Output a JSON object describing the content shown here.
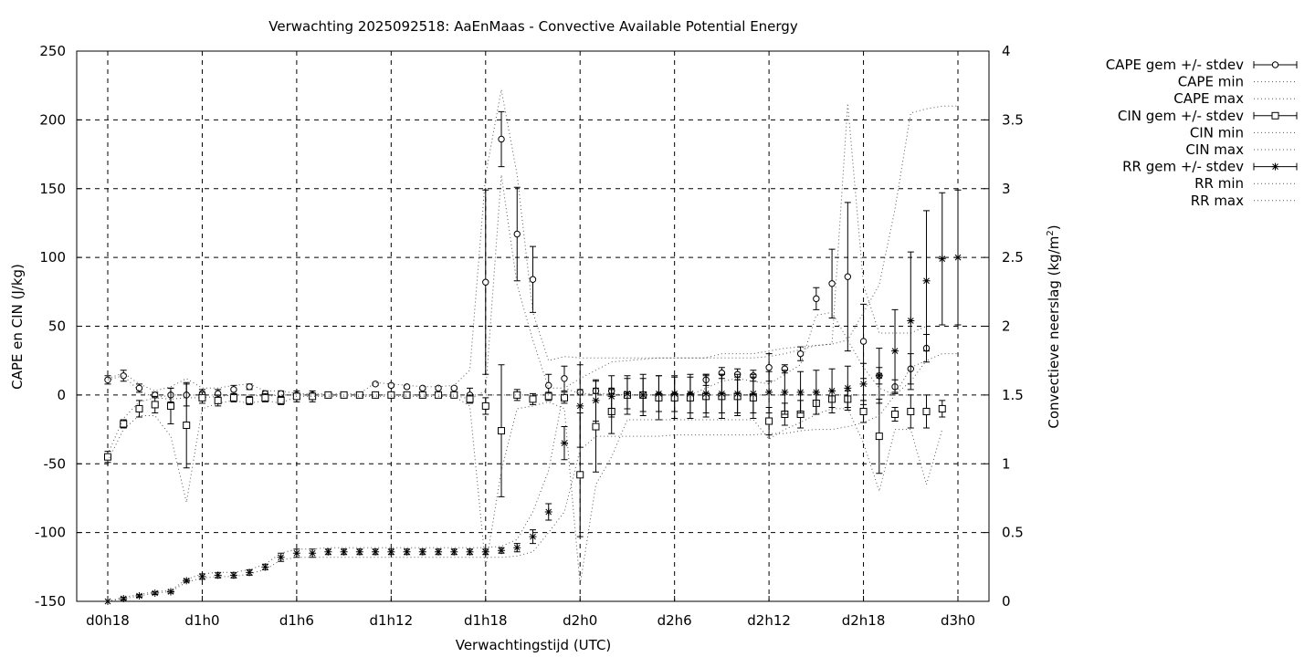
{
  "chart_data": {
    "type": "line",
    "title": "Verwachting 2025092518: AaEnMaas - Convective Available Potential Energy",
    "xlabel": "Verwachtingstijd (UTC)",
    "ylabel": "CAPE en CIN (J/kg)",
    "y2label_main": "Convectieve neerslag (kg/m",
    "y2label_sup": "2",
    "y2label_end": ")",
    "xlim": [
      0,
      57
    ],
    "ylim": [
      -150,
      250
    ],
    "y2lim": [
      0,
      4
    ],
    "grid": true,
    "legend_position": "outside-top-right",
    "xticks": [
      {
        "x": 0,
        "label": "d0h18"
      },
      {
        "x": 6,
        "label": "d1h0"
      },
      {
        "x": 12,
        "label": "d1h6"
      },
      {
        "x": 18,
        "label": "d1h12"
      },
      {
        "x": 24,
        "label": "d1h18"
      },
      {
        "x": 30,
        "label": "d2h0"
      },
      {
        "x": 36,
        "label": "d2h6"
      },
      {
        "x": 42,
        "label": "d2h12"
      },
      {
        "x": 48,
        "label": "d2h18"
      },
      {
        "x": 54,
        "label": "d3h0"
      }
    ],
    "yticks": [
      "250",
      "200",
      "150",
      "100",
      "50",
      "0",
      "-50",
      "-100",
      "-150"
    ],
    "y2ticks": [
      "4",
      "3.5",
      "3",
      "2.5",
      "2",
      "1.5",
      "1",
      "0.5",
      "0"
    ],
    "x": [
      0,
      1,
      2,
      3,
      4,
      5,
      6,
      7,
      8,
      9,
      10,
      11,
      12,
      13,
      14,
      15,
      16,
      17,
      18,
      19,
      20,
      21,
      22,
      23,
      24,
      25,
      26,
      27,
      28,
      29,
      30,
      31,
      32,
      33,
      34,
      35,
      36,
      37,
      38,
      39,
      40,
      41,
      42,
      43,
      44,
      45,
      46,
      47,
      48,
      49,
      50,
      51,
      52,
      53,
      54
    ],
    "series": [
      {
        "name": "CAPE gem +/- stdev",
        "axis": "y",
        "marker": "circle",
        "mean": [
          11,
          14,
          5,
          0,
          0,
          0,
          1,
          1,
          4,
          6,
          1,
          1,
          0,
          0,
          0,
          0,
          0,
          8,
          7,
          6,
          5,
          5,
          5,
          0,
          82,
          186,
          117,
          84,
          7,
          12,
          2,
          3,
          3,
          0,
          0,
          0,
          0,
          0,
          11,
          16,
          15,
          14,
          20,
          19,
          30,
          70,
          81,
          86,
          39,
          14,
          6,
          19,
          34,
          null,
          null
        ],
        "stdev": [
          3,
          4,
          3,
          2,
          5,
          8,
          3,
          3,
          3,
          2,
          2,
          2,
          1,
          1,
          1,
          1,
          1,
          1,
          1,
          1,
          1,
          1,
          1,
          5,
          67,
          20,
          34,
          24,
          8,
          9,
          2,
          2,
          2,
          1,
          1,
          1,
          1,
          1,
          4,
          4,
          4,
          4,
          10,
          3,
          5,
          8,
          25,
          54,
          27,
          6,
          5,
          11,
          10,
          null,
          null
        ]
      },
      {
        "name": "CAPE min",
        "axis": "y",
        "style": "dotted",
        "values": [
          11,
          14,
          3,
          -2,
          -3,
          -2,
          -2,
          -1,
          0,
          0,
          -1,
          0,
          0,
          0,
          0,
          0,
          0,
          0,
          0,
          0,
          0,
          0,
          0,
          -3,
          3,
          160,
          80,
          40,
          5,
          5,
          1,
          1,
          1,
          0,
          0,
          0,
          0,
          0,
          5,
          10,
          12,
          10,
          8,
          15,
          22,
          58,
          60,
          40,
          20,
          5,
          0,
          10,
          25,
          null,
          null
        ]
      },
      {
        "name": "CAPE max",
        "axis": "y",
        "style": "dotted",
        "values": [
          12,
          16,
          8,
          3,
          6,
          12,
          5,
          5,
          7,
          8,
          3,
          3,
          1,
          1,
          1,
          1,
          1,
          9,
          8,
          7,
          6,
          6,
          7,
          18,
          160,
          222,
          160,
          60,
          25,
          28,
          27,
          27,
          27,
          27,
          27,
          27,
          27,
          27,
          27,
          30,
          30,
          30,
          32,
          34,
          35,
          36,
          37,
          212,
          80,
          45,
          45,
          45,
          50,
          null,
          null
        ]
      },
      {
        "name": "CIN gem +/- stdev",
        "axis": "y",
        "marker": "square",
        "mean": [
          -45,
          -21,
          -10,
          -7,
          -8,
          -22,
          -2,
          -4,
          -2,
          -4,
          -2,
          -4,
          -1,
          -1,
          0,
          0,
          0,
          0,
          0,
          0,
          0,
          0,
          0,
          -3,
          -8,
          -26,
          0,
          -3,
          -1,
          -2,
          -58,
          -23,
          -12,
          0,
          0,
          -2,
          -2,
          -2,
          -1,
          -1,
          -1,
          -2,
          -19,
          -14,
          -14,
          -6,
          -3,
          -3,
          -12,
          -30,
          -14,
          -12,
          -12,
          -10,
          null
        ],
        "stdev": [
          4,
          3,
          6,
          6,
          13,
          31,
          4,
          4,
          3,
          3,
          3,
          3,
          4,
          4,
          2,
          2,
          2,
          2,
          2,
          2,
          2,
          2,
          2,
          3,
          6,
          48,
          4,
          4,
          3,
          4,
          45,
          33,
          16,
          14,
          15,
          16,
          15,
          15,
          15,
          16,
          14,
          15,
          10,
          8,
          10,
          8,
          6,
          6,
          8,
          27,
          5,
          12,
          12,
          6,
          null
        ]
      },
      {
        "name": "CIN min",
        "axis": "y",
        "style": "dotted",
        "values": [
          -48,
          -25,
          -15,
          -15,
          -30,
          -78,
          -10,
          -6,
          -4,
          -6,
          -4,
          -6,
          -1,
          -1,
          -1,
          -1,
          -1,
          -1,
          -1,
          -1,
          -1,
          -1,
          -1,
          -8,
          -125,
          -55,
          -10,
          -8,
          -5,
          -10,
          -138,
          -65,
          -45,
          -18,
          -18,
          -18,
          -18,
          -18,
          -18,
          -18,
          -18,
          -18,
          -32,
          -25,
          -20,
          -14,
          -10,
          -10,
          -35,
          -70,
          -25,
          -25,
          -65,
          -25,
          null
        ]
      },
      {
        "name": "CIN max",
        "axis": "y",
        "style": "dotted",
        "values": [
          -43,
          -17,
          -5,
          -2,
          0,
          0,
          0,
          0,
          0,
          0,
          0,
          0,
          0,
          0,
          0,
          0,
          0,
          0,
          0,
          0,
          0,
          0,
          0,
          0,
          0,
          0,
          0,
          0,
          0,
          0,
          0,
          0,
          0,
          0,
          0,
          0,
          0,
          0,
          0,
          0,
          0,
          0,
          0,
          0,
          0,
          0,
          0,
          0,
          0,
          0,
          0,
          0,
          0,
          0,
          null
        ]
      },
      {
        "name": "RR gem +/- stdev",
        "axis": "y2",
        "marker": "star",
        "mean": [
          0.0,
          0.02,
          0.04,
          0.06,
          0.07,
          0.15,
          0.18,
          0.19,
          0.19,
          0.21,
          0.25,
          0.32,
          0.35,
          0.35,
          0.36,
          0.36,
          0.36,
          0.36,
          0.36,
          0.36,
          0.36,
          0.36,
          0.36,
          0.36,
          0.36,
          0.37,
          0.39,
          0.47,
          0.65,
          1.15,
          1.42,
          1.46,
          1.49,
          1.51,
          1.5,
          1.51,
          1.51,
          1.51,
          1.51,
          1.51,
          1.51,
          1.51,
          1.52,
          1.52,
          1.52,
          1.52,
          1.53,
          1.55,
          1.58,
          1.64,
          1.82,
          2.04,
          2.33,
          2.49,
          2.5
        ],
        "stdev": [
          0.0,
          0.01,
          0.01,
          0.01,
          0.01,
          0.01,
          0.02,
          0.02,
          0.02,
          0.02,
          0.02,
          0.03,
          0.03,
          0.03,
          0.02,
          0.02,
          0.02,
          0.02,
          0.02,
          0.02,
          0.02,
          0.02,
          0.02,
          0.02,
          0.02,
          0.02,
          0.03,
          0.05,
          0.06,
          0.12,
          0.3,
          0.15,
          0.15,
          0.11,
          0.12,
          0.13,
          0.13,
          0.14,
          0.14,
          0.14,
          0.14,
          0.14,
          0.15,
          0.16,
          0.15,
          0.16,
          0.16,
          0.16,
          0.15,
          0.2,
          0.3,
          0.5,
          0.51,
          0.48,
          0.49
        ]
      },
      {
        "name": "RR min",
        "axis": "y2",
        "style": "dotted",
        "values": [
          0.0,
          0.02,
          0.04,
          0.06,
          0.07,
          0.14,
          0.17,
          0.18,
          0.18,
          0.2,
          0.23,
          0.3,
          0.32,
          0.32,
          0.32,
          0.32,
          0.32,
          0.32,
          0.32,
          0.32,
          0.32,
          0.32,
          0.32,
          0.32,
          0.32,
          0.32,
          0.33,
          0.36,
          0.5,
          0.65,
          1.1,
          1.2,
          1.2,
          1.2,
          1.2,
          1.2,
          1.21,
          1.21,
          1.21,
          1.21,
          1.21,
          1.21,
          1.22,
          1.22,
          1.24,
          1.25,
          1.25,
          1.27,
          1.3,
          1.35,
          1.5,
          1.7,
          1.75,
          1.8,
          1.8
        ]
      },
      {
        "name": "RR max",
        "axis": "y2",
        "style": "dotted",
        "values": [
          0.0,
          0.03,
          0.05,
          0.07,
          0.08,
          0.16,
          0.2,
          0.21,
          0.21,
          0.23,
          0.27,
          0.35,
          0.38,
          0.38,
          0.39,
          0.39,
          0.39,
          0.39,
          0.39,
          0.39,
          0.39,
          0.39,
          0.39,
          0.39,
          0.39,
          0.4,
          0.45,
          0.65,
          0.95,
          1.55,
          1.62,
          1.68,
          1.74,
          1.75,
          1.76,
          1.77,
          1.77,
          1.77,
          1.77,
          1.77,
          1.77,
          1.77,
          1.78,
          1.8,
          1.83,
          1.86,
          1.87,
          1.9,
          2.1,
          2.3,
          2.85,
          3.55,
          3.58,
          3.6,
          3.6
        ]
      }
    ]
  }
}
